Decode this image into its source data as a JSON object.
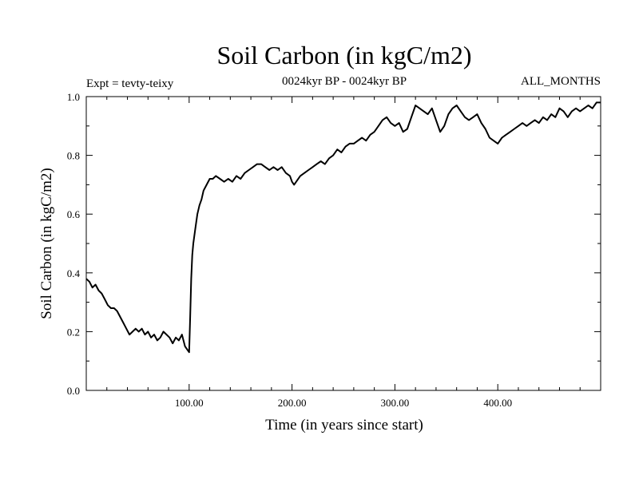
{
  "chart_data": {
    "type": "line",
    "title": "Soil Carbon (in kgC/m2)",
    "subtitle": "0024kyr BP - 0024kyr BP",
    "header_left": "Expt = tevty-teixy",
    "header_right": "ALL_MONTHS",
    "xlabel": "Time (in years since start)",
    "ylabel": "Soil Carbon (in kgC/m2)",
    "xlim": [
      0,
      500
    ],
    "ylim": [
      0,
      1.0
    ],
    "x_ticks": [
      {
        "value": 100,
        "label": "100.00"
      },
      {
        "value": 200,
        "label": "200.00"
      },
      {
        "value": 300,
        "label": "300.00"
      },
      {
        "value": 400,
        "label": "400.00"
      }
    ],
    "y_ticks": [
      {
        "value": 0.0,
        "label": "0.0"
      },
      {
        "value": 0.2,
        "label": "0.2"
      },
      {
        "value": 0.4,
        "label": "0.4"
      },
      {
        "value": 0.6,
        "label": "0.6"
      },
      {
        "value": 0.8,
        "label": "0.8"
      },
      {
        "value": 1.0,
        "label": "1.0"
      }
    ],
    "grid": false,
    "line_color": "#000000",
    "series": [
      {
        "x": [
          0,
          3,
          6,
          9,
          12,
          15,
          18,
          21,
          24,
          27,
          30,
          33,
          36,
          39,
          42,
          45,
          48,
          51,
          54,
          57,
          60,
          63,
          66,
          69,
          72,
          75,
          78,
          81,
          84,
          87,
          90,
          93,
          96,
          98,
          100,
          101,
          102,
          103,
          104,
          106,
          108,
          110,
          112,
          114,
          117,
          120,
          123,
          126,
          130,
          134,
          138,
          142,
          146,
          150,
          154,
          158,
          162,
          166,
          170,
          174,
          178,
          182,
          186,
          190,
          194,
          198,
          200,
          202,
          204,
          208,
          212,
          216,
          220,
          224,
          228,
          232,
          236,
          240,
          244,
          248,
          252,
          256,
          260,
          264,
          268,
          272,
          276,
          280,
          284,
          288,
          292,
          296,
          300,
          304,
          308,
          312,
          316,
          320,
          324,
          328,
          332,
          336,
          340,
          344,
          348,
          352,
          356,
          360,
          364,
          368,
          372,
          376,
          380,
          384,
          388,
          392,
          396,
          400,
          404,
          408,
          412,
          416,
          420,
          424,
          428,
          432,
          436,
          440,
          444,
          448,
          452,
          456,
          460,
          464,
          468,
          472,
          476,
          480,
          484,
          488,
          492,
          496,
          500
        ],
        "y": [
          0.38,
          0.37,
          0.35,
          0.36,
          0.34,
          0.33,
          0.31,
          0.29,
          0.28,
          0.28,
          0.27,
          0.25,
          0.23,
          0.21,
          0.19,
          0.2,
          0.21,
          0.2,
          0.21,
          0.19,
          0.2,
          0.18,
          0.19,
          0.17,
          0.18,
          0.2,
          0.19,
          0.18,
          0.16,
          0.18,
          0.17,
          0.19,
          0.15,
          0.14,
          0.13,
          0.25,
          0.38,
          0.46,
          0.5,
          0.55,
          0.6,
          0.63,
          0.65,
          0.68,
          0.7,
          0.72,
          0.72,
          0.73,
          0.72,
          0.71,
          0.72,
          0.71,
          0.73,
          0.72,
          0.74,
          0.75,
          0.76,
          0.77,
          0.77,
          0.76,
          0.75,
          0.76,
          0.75,
          0.76,
          0.74,
          0.73,
          0.71,
          0.7,
          0.71,
          0.73,
          0.74,
          0.75,
          0.76,
          0.77,
          0.78,
          0.77,
          0.79,
          0.8,
          0.82,
          0.81,
          0.83,
          0.84,
          0.84,
          0.85,
          0.86,
          0.85,
          0.87,
          0.88,
          0.9,
          0.92,
          0.93,
          0.91,
          0.9,
          0.91,
          0.88,
          0.89,
          0.93,
          0.97,
          0.96,
          0.95,
          0.94,
          0.96,
          0.92,
          0.88,
          0.9,
          0.94,
          0.96,
          0.97,
          0.95,
          0.93,
          0.92,
          0.93,
          0.94,
          0.91,
          0.89,
          0.86,
          0.85,
          0.84,
          0.86,
          0.87,
          0.88,
          0.89,
          0.9,
          0.91,
          0.9,
          0.91,
          0.92,
          0.91,
          0.93,
          0.92,
          0.94,
          0.93,
          0.96,
          0.95,
          0.93,
          0.95,
          0.96,
          0.95,
          0.96,
          0.97,
          0.96,
          0.98,
          0.98
        ]
      }
    ]
  }
}
